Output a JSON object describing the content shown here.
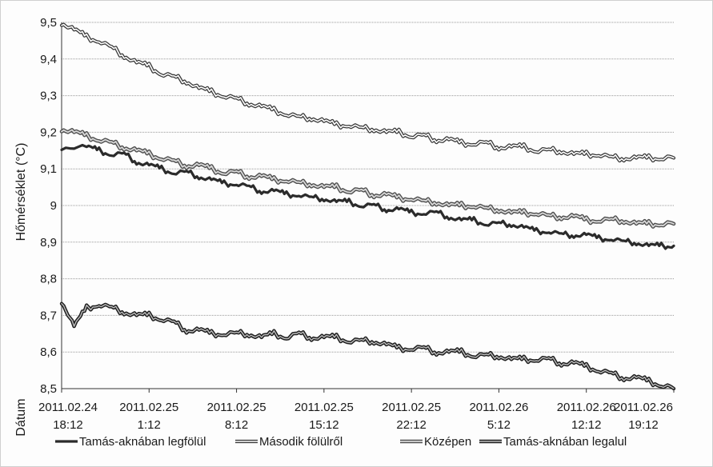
{
  "chart_data": {
    "type": "line",
    "ylabel": "Hőmérséklet (°C)",
    "xlabel": "Dátum",
    "ylim": [
      8.5,
      9.5
    ],
    "y_ticks": [
      {
        "value": 9.5,
        "label": "9,5"
      },
      {
        "value": 9.4,
        "label": "9,4"
      },
      {
        "value": 9.3,
        "label": "9,3"
      },
      {
        "value": 9.2,
        "label": "9,2"
      },
      {
        "value": 9.1,
        "label": "9,1"
      },
      {
        "value": 9.0,
        "label": "9"
      },
      {
        "value": 8.9,
        "label": "8,9"
      },
      {
        "value": 8.8,
        "label": "8,8"
      },
      {
        "value": 8.7,
        "label": "8,7"
      },
      {
        "value": 8.6,
        "label": "8,6"
      },
      {
        "value": 8.5,
        "label": "8,5"
      }
    ],
    "x_ticks": [
      {
        "line1": "2011.02.24",
        "line2": "18:12"
      },
      {
        "line1": "2011.02.25",
        "line2": "1:12"
      },
      {
        "line1": "2011.02.25",
        "line2": "8:12"
      },
      {
        "line1": "2011.02.25",
        "line2": "15:12"
      },
      {
        "line1": "2011.02.25",
        "line2": "22:12"
      },
      {
        "line1": "2011.02.26",
        "line2": "5:12"
      },
      {
        "line1": "2011.02.26",
        "line2": "12:12"
      },
      {
        "line1": "2011.02.26",
        "line2": "19:12"
      }
    ],
    "x_hours_span": 49,
    "grid": true,
    "legend_position": "bottom",
    "series": [
      {
        "name": "Tamás-aknában legfölül",
        "style": "solid",
        "color": "#2b2b2b",
        "points": [
          [
            0,
            9.16
          ],
          [
            2,
            9.16
          ],
          [
            3,
            9.15
          ],
          [
            4,
            9.14
          ],
          [
            5,
            9.14
          ],
          [
            6,
            9.12
          ],
          [
            7,
            9.11
          ],
          [
            8,
            9.1
          ],
          [
            9,
            9.09
          ],
          [
            10,
            9.09
          ],
          [
            11,
            9.08
          ],
          [
            12,
            9.07
          ],
          [
            13,
            9.06
          ],
          [
            14,
            9.06
          ],
          [
            15,
            9.05
          ],
          [
            16,
            9.04
          ],
          [
            17,
            9.04
          ],
          [
            18,
            9.03
          ],
          [
            19,
            9.03
          ],
          [
            20,
            9.02
          ],
          [
            21,
            9.02
          ],
          [
            22,
            9.01
          ],
          [
            23,
            9.01
          ],
          [
            24,
            9.0
          ],
          [
            25,
            9.0
          ],
          [
            26,
            8.99
          ],
          [
            27,
            8.99
          ],
          [
            28,
            8.98
          ],
          [
            29,
            8.98
          ],
          [
            30,
            8.98
          ],
          [
            31,
            8.97
          ],
          [
            32,
            8.96
          ],
          [
            33,
            8.96
          ],
          [
            34,
            8.95
          ],
          [
            35,
            8.95
          ],
          [
            36,
            8.95
          ],
          [
            37,
            8.94
          ],
          [
            38,
            8.93
          ],
          [
            39,
            8.93
          ],
          [
            40,
            8.92
          ],
          [
            41,
            8.92
          ],
          [
            42,
            8.92
          ],
          [
            43,
            8.91
          ],
          [
            44,
            8.91
          ],
          [
            45,
            8.9
          ],
          [
            46,
            8.9
          ],
          [
            47,
            8.89
          ],
          [
            48,
            8.89
          ],
          [
            49,
            8.89
          ]
        ]
      },
      {
        "name": "Második fölülről",
        "style": "hollow",
        "color": "#3a3a3a",
        "points": [
          [
            0,
            9.5
          ],
          [
            1,
            9.48
          ],
          [
            2,
            9.46
          ],
          [
            3,
            9.45
          ],
          [
            4,
            9.43
          ],
          [
            5,
            9.41
          ],
          [
            6,
            9.39
          ],
          [
            7,
            9.38
          ],
          [
            8,
            9.36
          ],
          [
            9,
            9.35
          ],
          [
            10,
            9.34
          ],
          [
            11,
            9.32
          ],
          [
            12,
            9.31
          ],
          [
            13,
            9.3
          ],
          [
            14,
            9.29
          ],
          [
            15,
            9.28
          ],
          [
            16,
            9.27
          ],
          [
            17,
            9.26
          ],
          [
            18,
            9.25
          ],
          [
            19,
            9.24
          ],
          [
            20,
            9.24
          ],
          [
            21,
            9.23
          ],
          [
            22,
            9.22
          ],
          [
            23,
            9.22
          ],
          [
            24,
            9.21
          ],
          [
            25,
            9.21
          ],
          [
            26,
            9.2
          ],
          [
            27,
            9.2
          ],
          [
            28,
            9.19
          ],
          [
            29,
            9.19
          ],
          [
            30,
            9.18
          ],
          [
            31,
            9.18
          ],
          [
            32,
            9.17
          ],
          [
            33,
            9.17
          ],
          [
            34,
            9.17
          ],
          [
            35,
            9.16
          ],
          [
            36,
            9.16
          ],
          [
            37,
            9.16
          ],
          [
            38,
            9.15
          ],
          [
            39,
            9.15
          ],
          [
            40,
            9.15
          ],
          [
            41,
            9.14
          ],
          [
            42,
            9.14
          ],
          [
            43,
            9.14
          ],
          [
            44,
            9.13
          ],
          [
            45,
            9.13
          ],
          [
            46,
            9.13
          ],
          [
            47,
            9.13
          ],
          [
            48,
            9.13
          ],
          [
            49,
            9.13
          ]
        ]
      },
      {
        "name": "Középen",
        "style": "hollow-gray",
        "color": "#555555",
        "points": [
          [
            0,
            9.21
          ],
          [
            1,
            9.2
          ],
          [
            2,
            9.19
          ],
          [
            3,
            9.18
          ],
          [
            4,
            9.17
          ],
          [
            5,
            9.16
          ],
          [
            6,
            9.15
          ],
          [
            7,
            9.14
          ],
          [
            8,
            9.13
          ],
          [
            9,
            9.12
          ],
          [
            10,
            9.11
          ],
          [
            11,
            9.11
          ],
          [
            12,
            9.1
          ],
          [
            13,
            9.09
          ],
          [
            14,
            9.09
          ],
          [
            15,
            9.08
          ],
          [
            16,
            9.08
          ],
          [
            17,
            9.07
          ],
          [
            18,
            9.07
          ],
          [
            19,
            9.06
          ],
          [
            20,
            9.06
          ],
          [
            21,
            9.05
          ],
          [
            22,
            9.05
          ],
          [
            23,
            9.04
          ],
          [
            24,
            9.04
          ],
          [
            25,
            9.03
          ],
          [
            26,
            9.03
          ],
          [
            27,
            9.02
          ],
          [
            28,
            9.02
          ],
          [
            29,
            9.01
          ],
          [
            30,
            9.01
          ],
          [
            31,
            9.0
          ],
          [
            32,
            9.0
          ],
          [
            33,
            9.0
          ],
          [
            34,
            8.99
          ],
          [
            35,
            8.99
          ],
          [
            36,
            8.98
          ],
          [
            37,
            8.98
          ],
          [
            38,
            8.98
          ],
          [
            39,
            8.97
          ],
          [
            40,
            8.97
          ],
          [
            41,
            8.97
          ],
          [
            42,
            8.96
          ],
          [
            43,
            8.96
          ],
          [
            44,
            8.96
          ],
          [
            45,
            8.96
          ],
          [
            46,
            8.95
          ],
          [
            47,
            8.95
          ],
          [
            48,
            8.95
          ],
          [
            49,
            8.95
          ]
        ]
      },
      {
        "name": "Tamás-aknában legalul",
        "style": "hollow-dark",
        "color": "#222222",
        "points": [
          [
            0,
            8.74
          ],
          [
            1,
            8.67
          ],
          [
            2,
            8.72
          ],
          [
            3,
            8.73
          ],
          [
            4,
            8.72
          ],
          [
            5,
            8.71
          ],
          [
            6,
            8.7
          ],
          [
            7,
            8.7
          ],
          [
            8,
            8.69
          ],
          [
            9,
            8.68
          ],
          [
            10,
            8.66
          ],
          [
            11,
            8.66
          ],
          [
            12,
            8.65
          ],
          [
            13,
            8.65
          ],
          [
            14,
            8.65
          ],
          [
            15,
            8.65
          ],
          [
            16,
            8.64
          ],
          [
            17,
            8.65
          ],
          [
            18,
            8.64
          ],
          [
            19,
            8.65
          ],
          [
            20,
            8.64
          ],
          [
            21,
            8.64
          ],
          [
            22,
            8.64
          ],
          [
            23,
            8.63
          ],
          [
            24,
            8.63
          ],
          [
            25,
            8.63
          ],
          [
            26,
            8.62
          ],
          [
            27,
            8.61
          ],
          [
            28,
            8.61
          ],
          [
            29,
            8.61
          ],
          [
            30,
            8.6
          ],
          [
            31,
            8.6
          ],
          [
            32,
            8.6
          ],
          [
            33,
            8.59
          ],
          [
            34,
            8.59
          ],
          [
            35,
            8.59
          ],
          [
            36,
            8.58
          ],
          [
            37,
            8.58
          ],
          [
            38,
            8.58
          ],
          [
            39,
            8.58
          ],
          [
            40,
            8.57
          ],
          [
            41,
            8.57
          ],
          [
            42,
            8.56
          ],
          [
            43,
            8.55
          ],
          [
            44,
            8.54
          ],
          [
            45,
            8.53
          ],
          [
            46,
            8.53
          ],
          [
            47,
            8.52
          ],
          [
            48,
            8.51
          ],
          [
            49,
            8.5
          ]
        ]
      }
    ]
  }
}
